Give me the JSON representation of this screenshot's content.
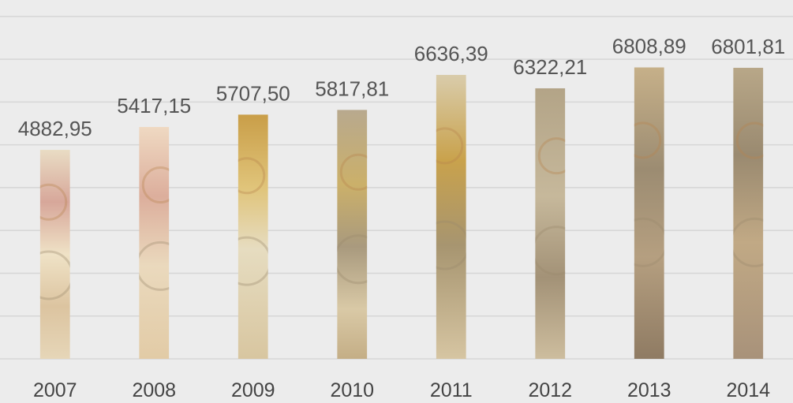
{
  "chart_data": {
    "type": "bar",
    "categories": [
      "2007",
      "2008",
      "2009",
      "2010",
      "2011",
      "2012",
      "2013",
      "2014"
    ],
    "values": [
      4882.95,
      5417.15,
      5707.5,
      5817.81,
      6636.39,
      6322.21,
      6808.89,
      6801.81
    ],
    "value_labels": [
      "4882,95",
      "5417,15",
      "5707,50",
      "5817,81",
      "6636,39",
      "6322,21",
      "6808,89",
      "6801,81"
    ],
    "title": "",
    "xlabel": "",
    "ylabel": "",
    "ylim": [
      0,
      8200
    ],
    "grid": true,
    "legend": "none"
  },
  "colors": {
    "background": "#ececec",
    "grid": "#d6d6d6",
    "label": "#555555",
    "banknote_cream": "#e8d6b8",
    "banknote_rose": "#d9a89a",
    "coin_gold": "#c8a457",
    "coin_silver": "#b9ad96"
  }
}
